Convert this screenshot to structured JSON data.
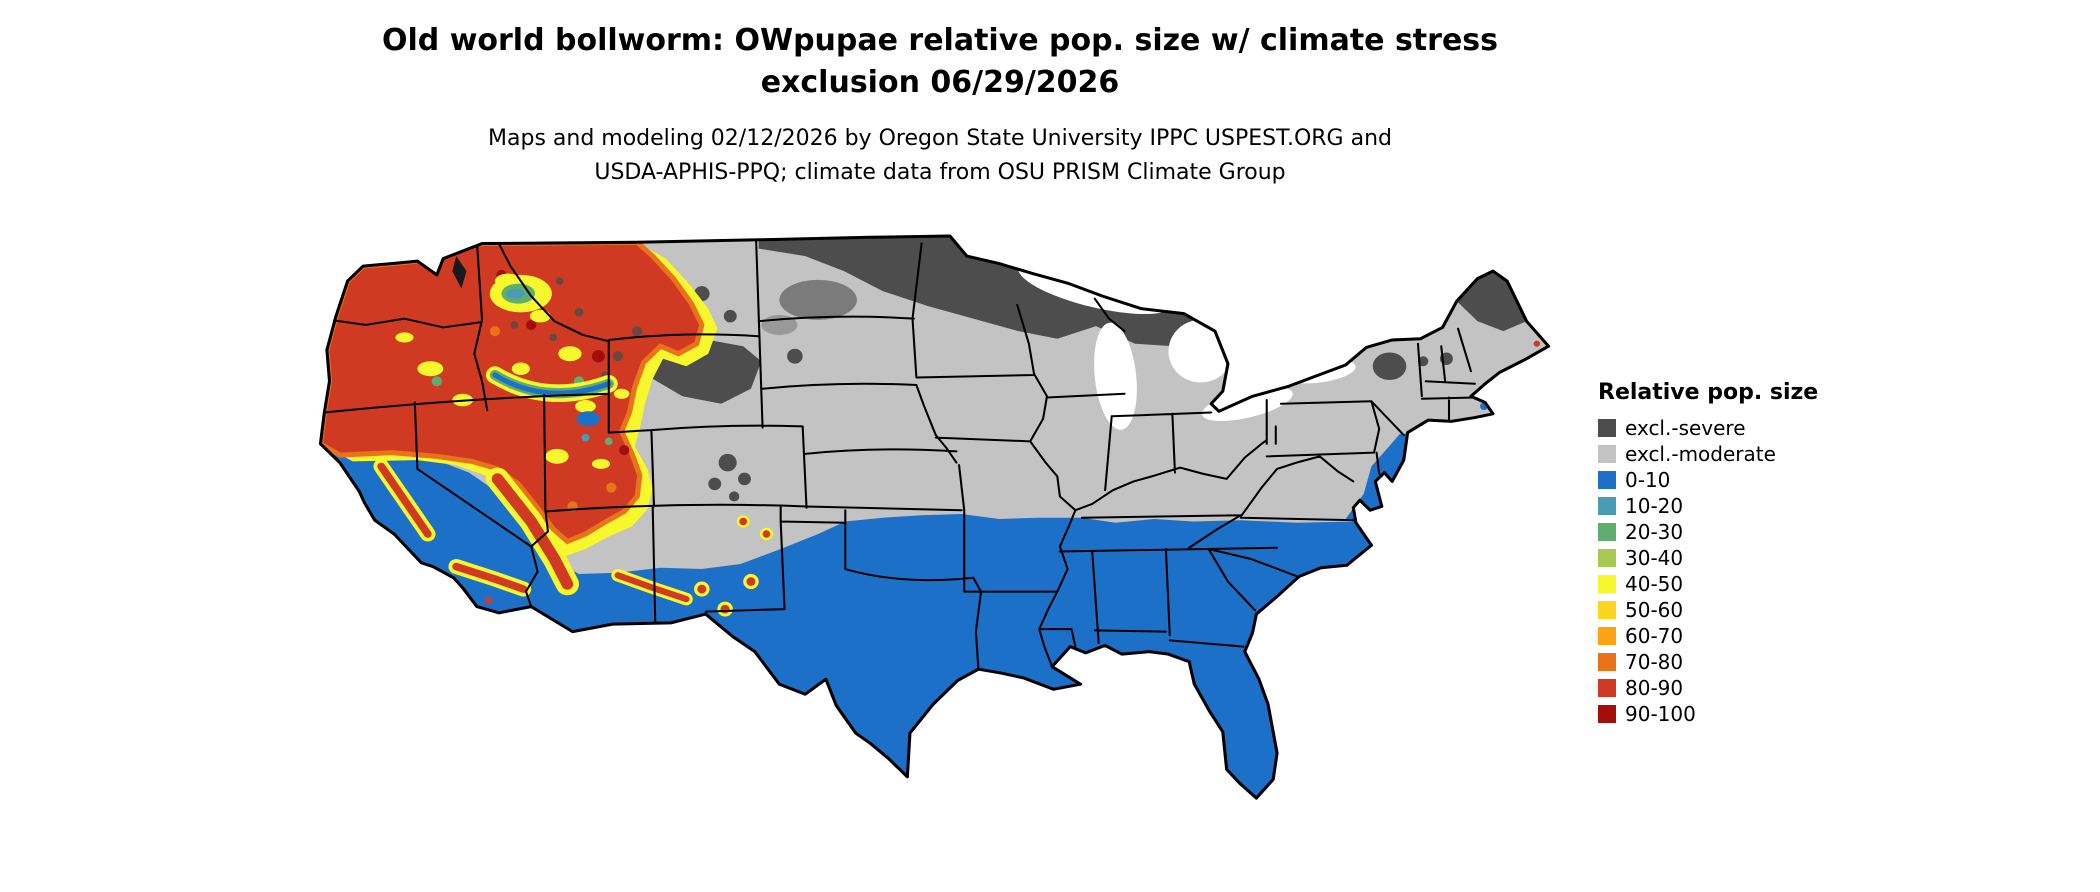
{
  "title": {
    "line1": "Old world bollworm: OWpupae relative pop. size w/ climate stress",
    "line2": "exclusion 06/29/2026"
  },
  "subtitle": {
    "line1": "Maps and modeling 02/12/2026 by Oregon State University IPPC USPEST.ORG and",
    "line2": "USDA-APHIS-PPQ; climate data from OSU PRISM Climate Group"
  },
  "legend": {
    "title": "Relative pop. size",
    "items": [
      {
        "label": "excl.-severe",
        "color": "#4d4d4d"
      },
      {
        "label": "excl.-moderate",
        "color": "#c3c3c3"
      },
      {
        "label": "0-10",
        "color": "#1c70c8"
      },
      {
        "label": "10-20",
        "color": "#4a9bb5"
      },
      {
        "label": "20-30",
        "color": "#5fae6e"
      },
      {
        "label": "30-40",
        "color": "#a8c94f"
      },
      {
        "label": "40-50",
        "color": "#f7f72e"
      },
      {
        "label": "50-60",
        "color": "#ffd41f"
      },
      {
        "label": "60-70",
        "color": "#ffa312"
      },
      {
        "label": "70-80",
        "color": "#e8731a"
      },
      {
        "label": "80-90",
        "color": "#d03a22"
      },
      {
        "label": "90-100",
        "color": "#a50d0d"
      }
    ]
  },
  "map": {
    "region": "Contiguous United States",
    "kind": "raster choropleth with state boundaries",
    "high_population_areas": "Pacific Northwest, Great Basin, northern Rockies, Sierra Nevada",
    "excluded_severe_areas": "northern Minnesota/Wisconsin/Michigan, North Dakota, NW Wyoming highlands, northern Maine",
    "low_population_areas": "southern tier of the U.S. from California through Texas to the Southeast and Florida"
  }
}
